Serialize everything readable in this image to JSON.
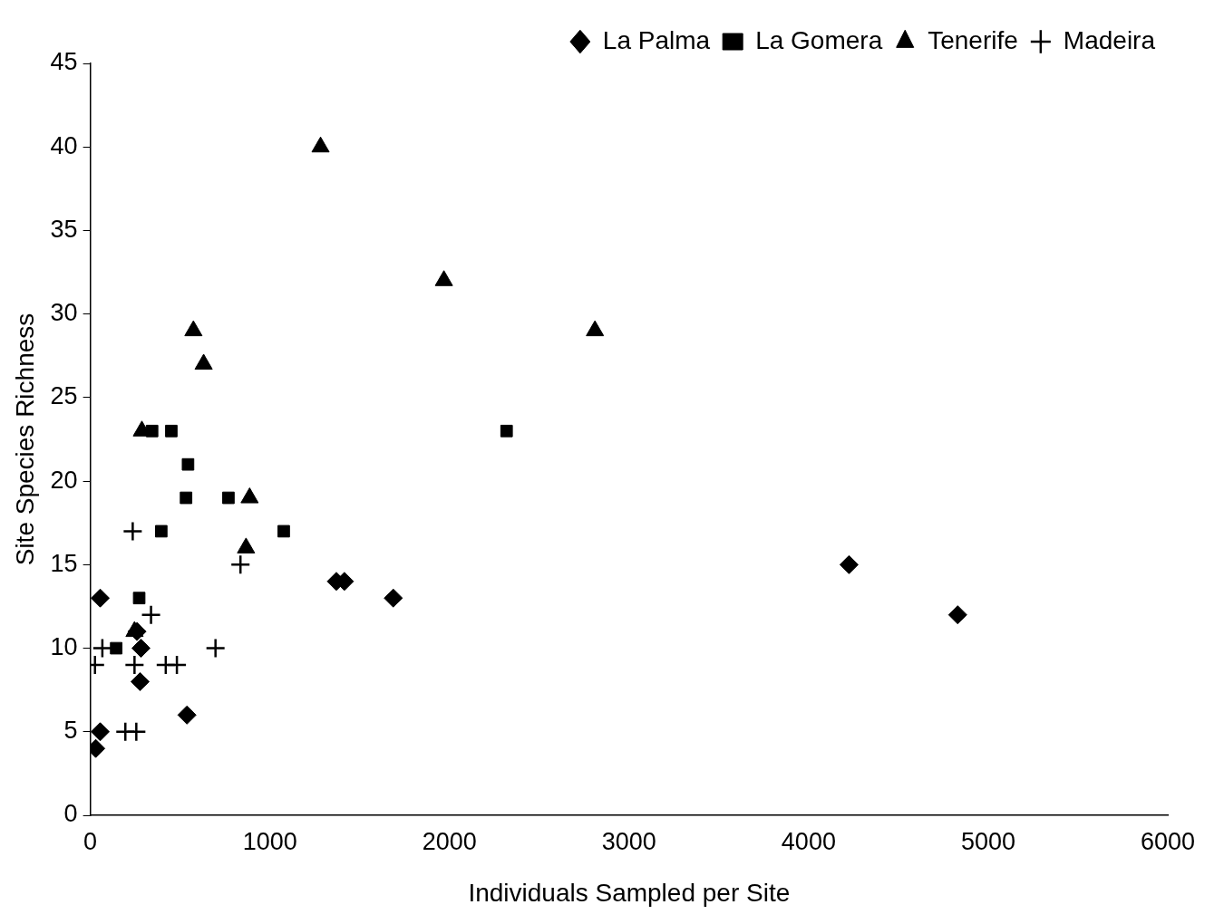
{
  "chart_data": {
    "type": "scatter",
    "xlabel": "Individuals Sampled per Site",
    "ylabel": "Site Species Richness",
    "xlim": [
      0,
      6000
    ],
    "xticks": [
      0,
      1000,
      2000,
      3000,
      4000,
      5000,
      6000
    ],
    "ylim": [
      0,
      45
    ],
    "yticks": [
      0,
      5,
      10,
      15,
      20,
      25,
      30,
      35,
      40,
      45
    ],
    "grid": false,
    "legend": "top right",
    "series": [
      {
        "name": "La Palma",
        "color": "#000000",
        "marker": "diamond",
        "x": [
          30,
          55,
          55,
          277,
          282,
          260,
          538,
          1370,
          1415,
          1687,
          4225,
          4830
        ],
        "values": [
          4,
          5,
          13,
          8,
          10,
          11,
          6,
          14,
          14,
          13,
          15,
          12
        ]
      },
      {
        "name": "La Gomera",
        "color": "#000000",
        "marker": "square",
        "x": [
          144,
          272,
          395,
          533,
          544,
          451,
          344,
          769,
          1077,
          2318
        ],
        "values": [
          10,
          13,
          17,
          19,
          21,
          23,
          23,
          19,
          17,
          23
        ]
      },
      {
        "name": "Tenerife",
        "color": "#000000",
        "marker": "triangle",
        "x": [
          287,
          1282,
          1969,
          2810,
          574,
          631,
          887,
          867,
          246
        ],
        "values": [
          23,
          40,
          32,
          29,
          29,
          27,
          19,
          16,
          11
        ]
      },
      {
        "name": "Madeira",
        "color": "#000000",
        "marker": "cross",
        "x": [
          26,
          236,
          338,
          246,
          420,
          482,
          195,
          256,
          697,
          836,
          67
        ],
        "values": [
          9,
          17,
          12,
          9,
          9,
          9,
          5,
          5,
          10,
          15,
          10
        ]
      }
    ]
  }
}
